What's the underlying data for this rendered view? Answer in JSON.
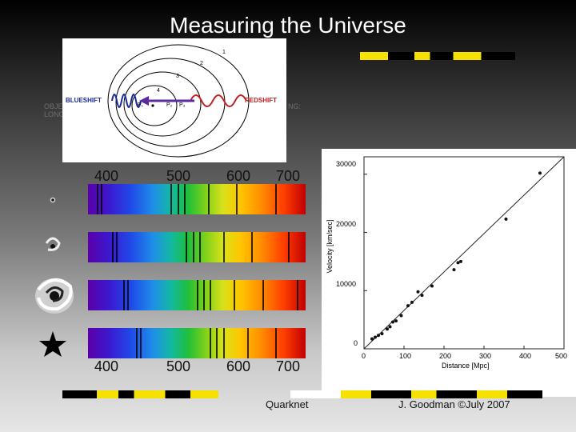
{
  "title": "Measuring the Universe",
  "doppler": {
    "blueshift": "BLUESHIFT",
    "redshift": "REDSHIFT",
    "ring_labels": [
      "1",
      "2",
      "3",
      "4"
    ],
    "point_labels": [
      "P₁",
      "P₂",
      "P₃"
    ]
  },
  "ghost_text": {
    "left_line1": "OBJEC",
    "left_line2": "LONG",
    "right_fragment": "NG:"
  },
  "spectra": {
    "top_axis": [
      "400",
      "500",
      "600",
      "700"
    ],
    "bottom_axis": [
      "400",
      "500",
      "600",
      "700"
    ]
  },
  "hubble_plot": {
    "y_ticks": [
      "0",
      "10000",
      "20000",
      "30000"
    ],
    "x_ticks": [
      "0",
      "100",
      "200",
      "300",
      "400",
      "500"
    ],
    "y_label": "Velocity [km/sec]",
    "x_label": "Distance [Mpc]"
  },
  "chart_data": {
    "type": "scatter",
    "xlabel": "Distance [Mpc]",
    "ylabel": "Velocity [km/sec]",
    "xlim": [
      0,
      500
    ],
    "ylim": [
      0,
      33000
    ],
    "fit_line": [
      [
        0,
        0
      ],
      [
        500,
        33500
      ]
    ],
    "points": [
      [
        20,
        1700
      ],
      [
        28,
        2000
      ],
      [
        36,
        2300
      ],
      [
        45,
        2600
      ],
      [
        58,
        3400
      ],
      [
        65,
        3800
      ],
      [
        72,
        4600
      ],
      [
        80,
        4800
      ],
      [
        93,
        5700
      ],
      [
        110,
        7400
      ],
      [
        120,
        8000
      ],
      [
        135,
        9800
      ],
      [
        145,
        9200
      ],
      [
        170,
        10800
      ],
      [
        225,
        13600
      ],
      [
        235,
        14800
      ],
      [
        242,
        15000
      ],
      [
        355,
        22300
      ],
      [
        440,
        30200
      ]
    ]
  },
  "footer": {
    "org": "Quarknet",
    "credit": "J. Goodman ©July 2007"
  },
  "colors": {
    "stripe_yellow": "#f5e000",
    "stripe_black": "#000000",
    "blueshift": "#1a2a9a",
    "redshift": "#c02020"
  }
}
